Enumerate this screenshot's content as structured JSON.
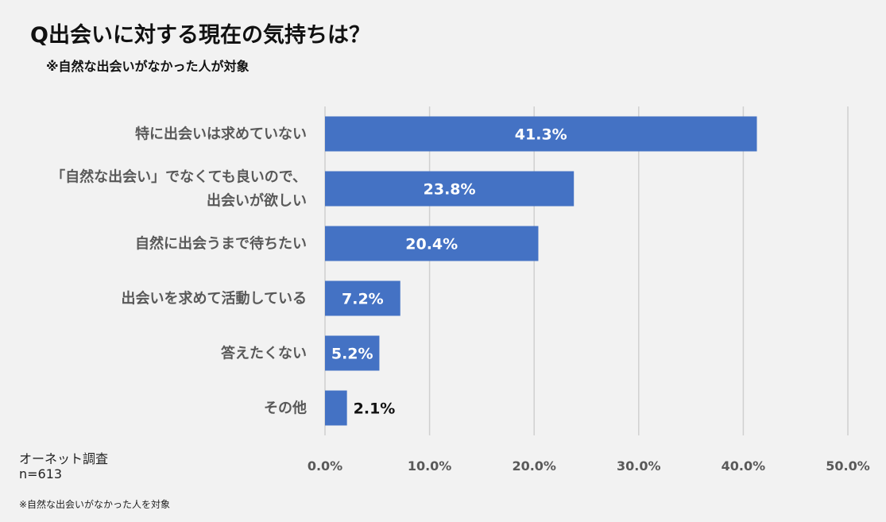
{
  "header": {
    "title": "Q出会いに対する現在の気持ちは？",
    "subtitle": "※自然な出会いがなかった人が対象"
  },
  "footer": {
    "source": "オーネット調査",
    "sample": "n=613",
    "note": "※自然な出会いがなかった人を対象"
  },
  "colors": {
    "bar": "#4472c4",
    "grid": "#d0d0d0",
    "background": "#f2f2f2"
  },
  "chart_data": {
    "type": "bar",
    "orientation": "horizontal",
    "categories": [
      [
        "特に出会いは求めていない"
      ],
      [
        "「自然な出会い」でなくても良いので、",
        "出会いが欲しい"
      ],
      [
        "自然に出会うまで待ちたい"
      ],
      [
        "出会いを求めて活動している"
      ],
      [
        "答えたくない"
      ],
      [
        "その他"
      ]
    ],
    "values": [
      41.3,
      23.8,
      20.4,
      7.2,
      5.2,
      2.1
    ],
    "data_labels": [
      "41.3%",
      "23.8%",
      "20.4%",
      "7.2%",
      "5.2%",
      "2.1%"
    ],
    "xlim": [
      0,
      50
    ],
    "xticks": [
      0,
      10,
      20,
      30,
      40,
      50
    ],
    "xtick_labels": [
      "0.0%",
      "10.0%",
      "20.0%",
      "30.0%",
      "40.0%",
      "50.0%"
    ],
    "grid": true,
    "legend": "none"
  }
}
